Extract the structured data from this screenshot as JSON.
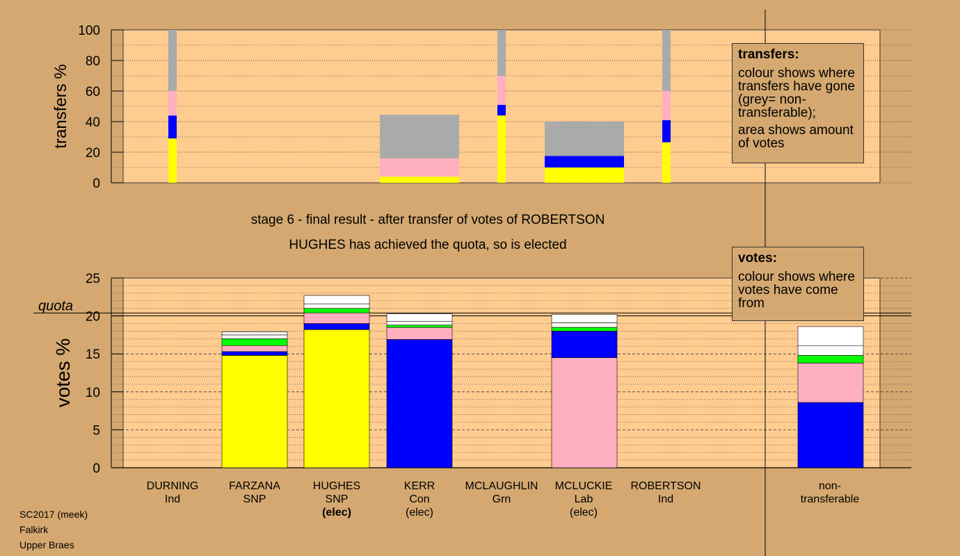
{
  "stage_line1": "stage 6 - final result - after transfer of votes of ROBERTSON",
  "stage_line2": "HUGHES has achieved the quota, so is elected",
  "legend_transfers": {
    "title": "transfers:",
    "text1": "colour shows where transfers have gone (grey= non-transferable);",
    "text2": "area shows amount of votes"
  },
  "legend_votes": {
    "title": "votes:",
    "text1": "colour shows where votes have come from"
  },
  "candidates": [
    {
      "name": "DURNING",
      "party": "Ind",
      "status": ""
    },
    {
      "name": "FARZANA",
      "party": "SNP",
      "status": ""
    },
    {
      "name": "HUGHES",
      "party": "SNP",
      "status": "(elec)"
    },
    {
      "name": "KERR",
      "party": "Con",
      "status": "(elec)"
    },
    {
      "name": "MCLAUGHLIN",
      "party": "Grn",
      "status": ""
    },
    {
      "name": "MCLUCKIE",
      "party": "Lab",
      "status": "(elec)"
    },
    {
      "name": "ROBERTSON",
      "party": "Ind",
      "status": ""
    },
    {
      "name": "non-",
      "party": "transferable",
      "status": ""
    }
  ],
  "footer": {
    "line1": "SC2017 (meek)",
    "line2": "Falkirk",
    "line3": "Upper Braes"
  },
  "chart_data": [
    {
      "type": "bar",
      "name": "transfers",
      "ylabel": "transfers %",
      "ylim": [
        0,
        100
      ],
      "yticks": [
        0,
        20,
        40,
        60,
        80,
        100
      ],
      "colors": {
        "SNP": "#ffff00",
        "Con": "#0000ff",
        "Lab": "#ffb0c0",
        "Grn": "#00ff00",
        "Ind": "#ffffff",
        "non-transferable": "#aaaaaa"
      },
      "bars": [
        {
          "stage": 1,
          "wide": false,
          "segments": [
            {
              "party": "SNP",
              "value": 29
            },
            {
              "party": "Con",
              "value": 15
            },
            {
              "party": "Lab",
              "value": 16
            },
            {
              "party": "non-transferable",
              "value": 40
            }
          ]
        },
        {
          "stage": 2,
          "wide": true,
          "segments": [
            {
              "party": "SNP",
              "value": 4
            },
            {
              "party": "Lab",
              "value": 12
            },
            {
              "party": "non-transferable",
              "value": 28.5
            }
          ]
        },
        {
          "stage": 3,
          "wide": false,
          "segments": [
            {
              "party": "SNP",
              "value": 44
            },
            {
              "party": "Con",
              "value": 7
            },
            {
              "party": "Lab",
              "value": 19
            },
            {
              "party": "non-transferable",
              "value": 30
            }
          ]
        },
        {
          "stage": 4,
          "wide": true,
          "segments": [
            {
              "party": "SNP",
              "value": 10
            },
            {
              "party": "Con",
              "value": 7.5
            },
            {
              "party": "non-transferable",
              "value": 22.5
            }
          ]
        },
        {
          "stage": 5,
          "wide": false,
          "segments": [
            {
              "party": "SNP",
              "value": 26.5
            },
            {
              "party": "Con",
              "value": 14.5
            },
            {
              "party": "Lab",
              "value": 19
            },
            {
              "party": "non-transferable",
              "value": 40
            }
          ]
        }
      ]
    },
    {
      "type": "bar",
      "name": "votes",
      "ylabel": "votes %",
      "ylim": [
        0,
        25
      ],
      "yticks": [
        0,
        5,
        10,
        15,
        20,
        25
      ],
      "quota": 20.2,
      "quota_label": "quota",
      "categories": [
        "DURNING",
        "FARZANA",
        "HUGHES",
        "KERR",
        "MCLAUGHLIN",
        "MCLUCKIE",
        "ROBERTSON",
        "non-transferable"
      ],
      "stacks": [
        [],
        [
          {
            "party": "SNP",
            "value": 14.8
          },
          {
            "party": "Con",
            "value": 0.5
          },
          {
            "party": "Lab",
            "value": 0.8
          },
          {
            "party": "Grn",
            "value": 0.9
          },
          {
            "party": "Ind",
            "value": 0.5
          },
          {
            "party": "Ind",
            "value": 0.4
          }
        ],
        [
          {
            "party": "SNP",
            "value": 18.2
          },
          {
            "party": "Con",
            "value": 0.8
          },
          {
            "party": "Lab",
            "value": 1.4
          },
          {
            "party": "Grn",
            "value": 0.6
          },
          {
            "party": "Ind",
            "value": 0.6
          },
          {
            "party": "Ind",
            "value": 1.1
          }
        ],
        [
          {
            "party": "Con",
            "value": 16.9
          },
          {
            "party": "Lab",
            "value": 1.6
          },
          {
            "party": "Grn",
            "value": 0.3
          },
          {
            "party": "Ind",
            "value": 0.5
          },
          {
            "party": "Ind",
            "value": 1.0
          }
        ],
        [],
        [
          {
            "party": "Lab",
            "value": 14.5
          },
          {
            "party": "Con",
            "value": 3.5
          },
          {
            "party": "Grn",
            "value": 0.5
          },
          {
            "party": "Ind",
            "value": 0.6
          },
          {
            "party": "Ind",
            "value": 1.1
          }
        ],
        [],
        [
          {
            "party": "Con",
            "value": 8.6
          },
          {
            "party": "Lab",
            "value": 5.2
          },
          {
            "party": "Grn",
            "value": 1.0
          },
          {
            "party": "Ind",
            "value": 1.3
          },
          {
            "party": "Ind",
            "value": 2.5
          }
        ]
      ]
    }
  ]
}
